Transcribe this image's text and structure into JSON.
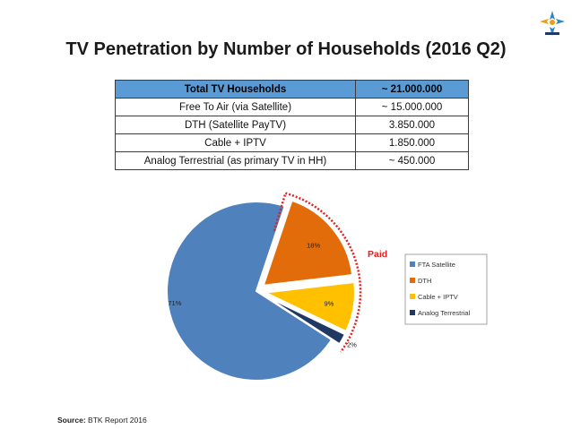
{
  "title": "TV Penetration by Number of Households (2016 Q2)",
  "table": {
    "header": [
      "Total TV Households",
      "~ 21.000.000"
    ],
    "rows": [
      [
        "Free To Air (via Satellite)",
        "~ 15.000.000"
      ],
      [
        "DTH (Satellite PayTV)",
        "3.850.000"
      ],
      [
        "Cable + IPTV",
        "1.850.000"
      ],
      [
        "Analog Terrestrial (as primary TV in HH)",
        "~ 450.000"
      ]
    ]
  },
  "chart_data": {
    "type": "pie",
    "title": "",
    "slices": [
      {
        "name": "FTA Satellite",
        "value": 71,
        "label": "71%",
        "color": "#4f81bd",
        "exploded": false
      },
      {
        "name": "DTH",
        "value": 18,
        "label": "18%",
        "color": "#e36c0a",
        "exploded": true
      },
      {
        "name": "Cable + IPTV",
        "value": 9,
        "label": "9%",
        "color": "#ffc000",
        "exploded": true
      },
      {
        "name": "Analog Terrestrial",
        "value": 2,
        "label": "2%",
        "color": "#1f3864",
        "exploded": true
      }
    ],
    "legend": [
      "FTA Satellite",
      "DTH",
      "Cable + IPTV",
      "Analog Terrestrial"
    ],
    "legend_position": "right",
    "annotation": "Paid",
    "annotation_color": "#e02020"
  },
  "source": {
    "label": "Source:",
    "text": "BTK Report 2016"
  }
}
